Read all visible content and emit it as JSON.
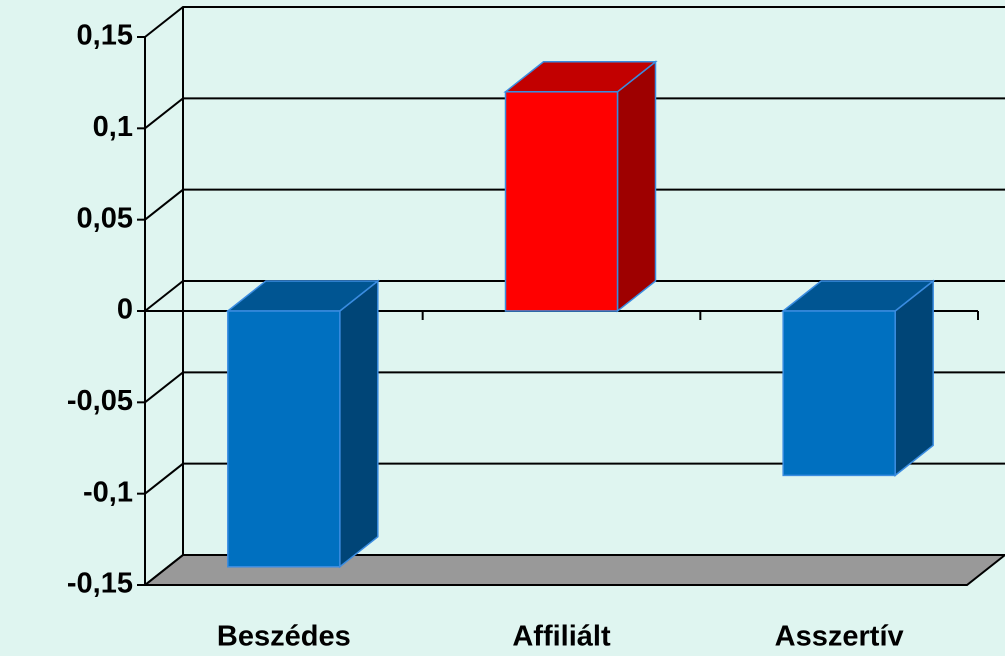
{
  "chart_data": {
    "type": "bar3d",
    "categories": [
      "Beszédes",
      "Affiliált",
      "Asszertív"
    ],
    "values": [
      -0.14,
      0.12,
      -0.09
    ],
    "colors": [
      "#0070c0",
      "#ff0000",
      "#0070c0"
    ],
    "ylim": [
      -0.15,
      0.15
    ],
    "yticks": [
      {
        "value": -0.15,
        "label": "-0,15"
      },
      {
        "value": -0.1,
        "label": "-0,1"
      },
      {
        "value": -0.05,
        "label": "-0,05"
      },
      0,
      {
        "value": 0.05,
        "label": "0,05"
      },
      {
        "value": 0.1,
        "label": "0,1"
      },
      {
        "value": 0.15,
        "label": "0,15"
      }
    ],
    "grid": true
  }
}
